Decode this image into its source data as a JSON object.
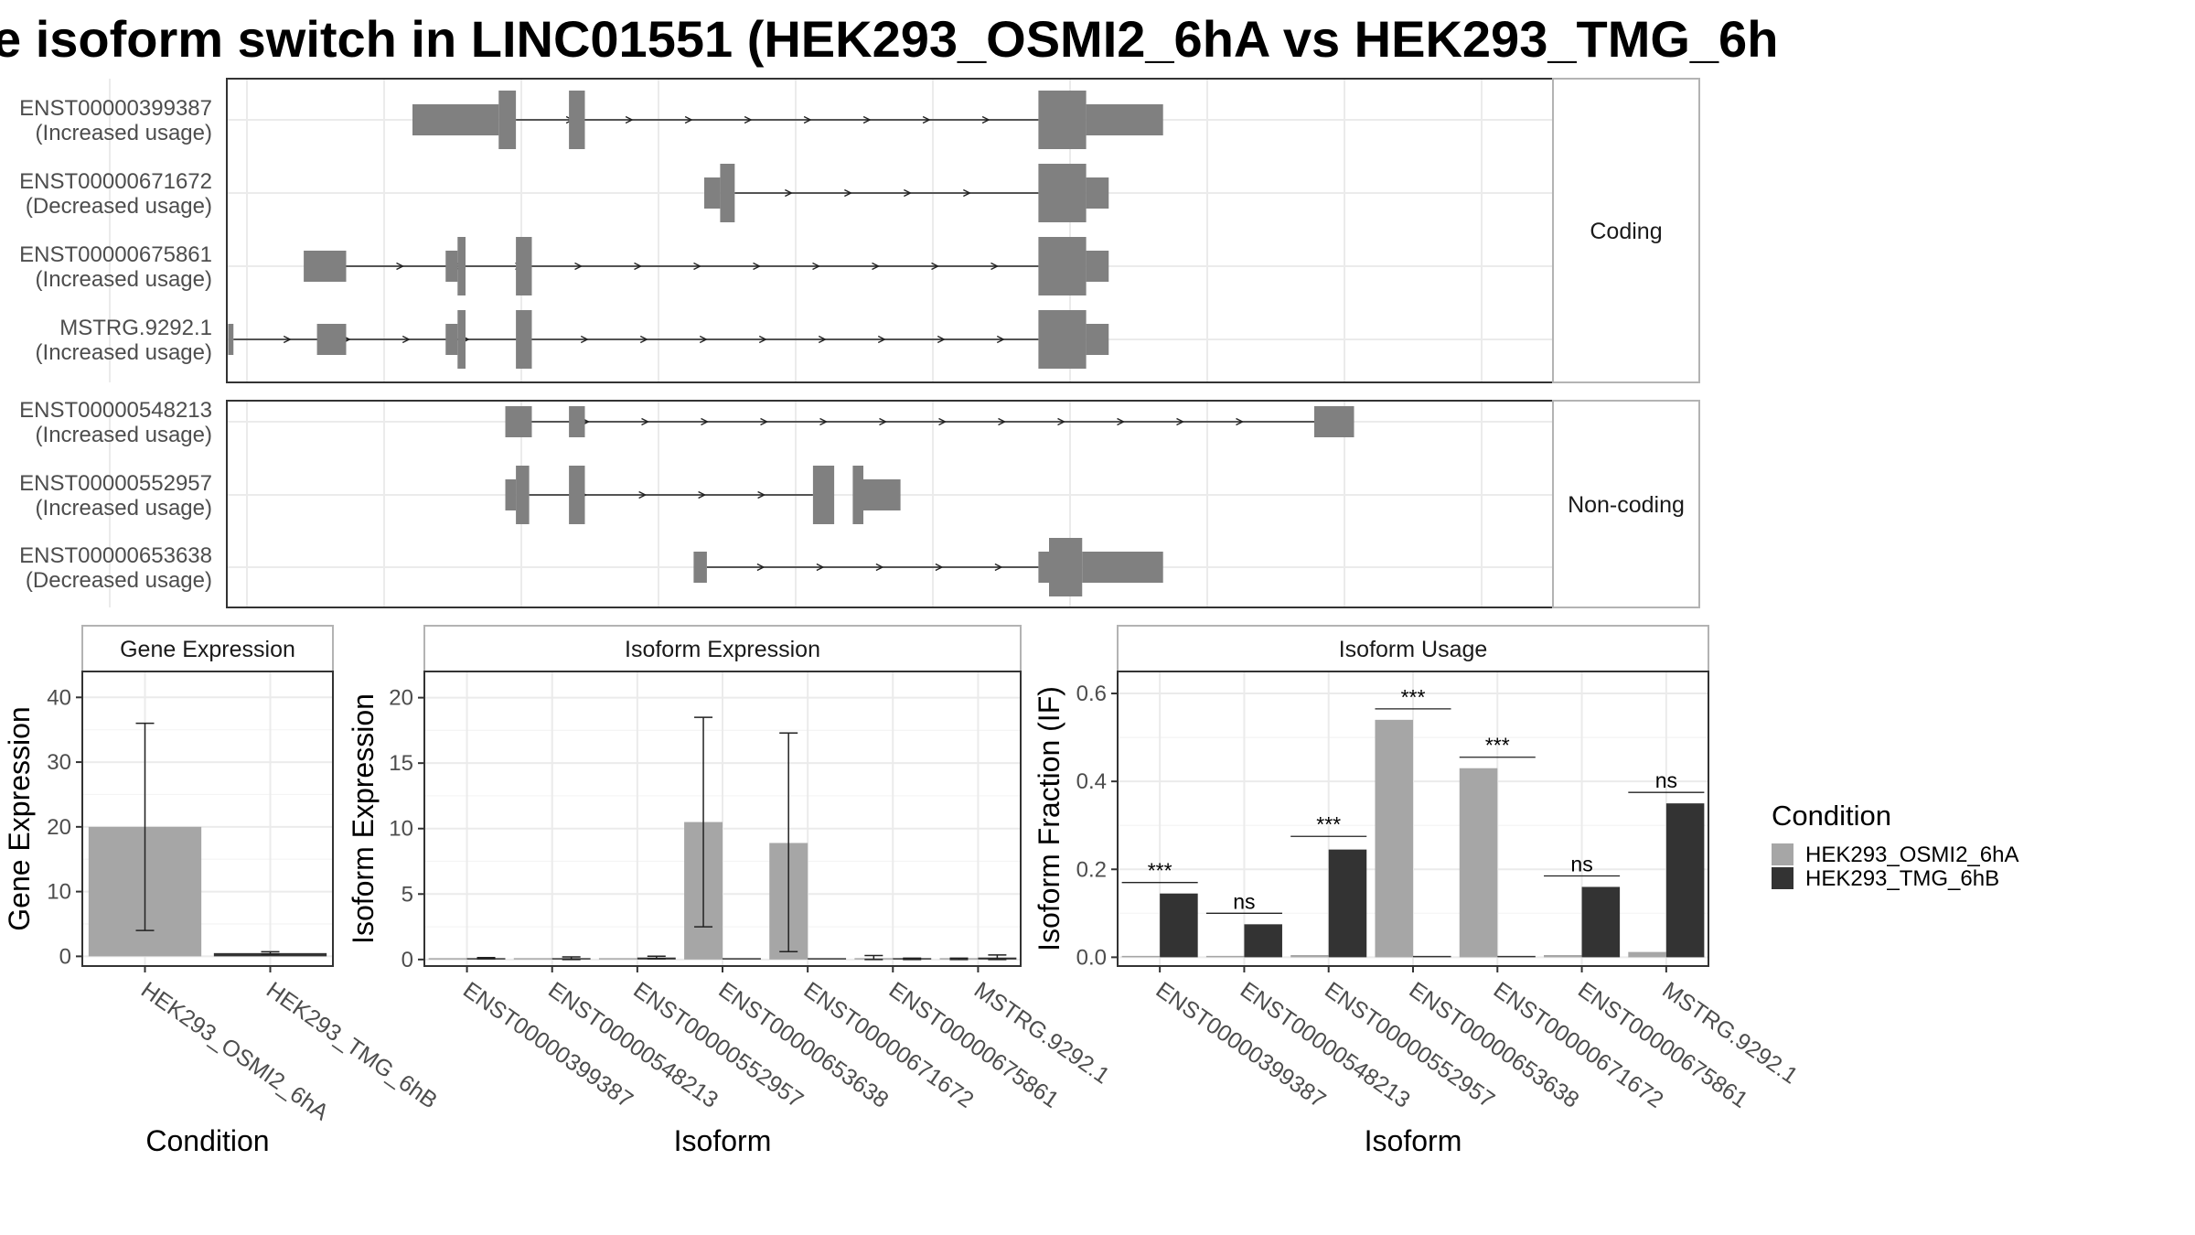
{
  "title": "e isoform switch in LINC01551 (HEK293_OSMI2_6hA vs HEK293_TMG_6h",
  "colors": {
    "condA": "#a6a6a6",
    "condB": "#333333",
    "exon": "#808080",
    "grid": "#ebebeb",
    "panel_border": "#333333",
    "strip_border": "#b3b3b3"
  },
  "structure_panels": [
    {
      "label": "Coding",
      "isoforms": [
        {
          "id": "ENST00000399387",
          "usage": "(Increased usage)"
        },
        {
          "id": "ENST00000671672",
          "usage": "(Decreased usage)"
        },
        {
          "id": "ENST00000675861",
          "usage": "(Increased usage)"
        },
        {
          "id": "MSTRG.9292.1",
          "usage": "(Increased usage)"
        }
      ]
    },
    {
      "label": "Non-coding",
      "isoforms": [
        {
          "id": "ENST00000548213",
          "usage": "(Increased usage)"
        },
        {
          "id": "ENST00000552957",
          "usage": "(Increased usage)"
        },
        {
          "id": "ENST00000653638",
          "usage": "(Decreased usage)"
        }
      ]
    }
  ],
  "legend": {
    "title": "Condition",
    "items": [
      {
        "label": "HEK293_OSMI2_6hA",
        "color": "#a6a6a6"
      },
      {
        "label": "HEK293_TMG_6hB",
        "color": "#333333"
      }
    ]
  },
  "chart_data": [
    {
      "type": "bar",
      "strip": "Gene Expression",
      "xlabel": "Condition",
      "ylabel": "Gene Expression",
      "ylim": [
        -1.5,
        44
      ],
      "yticks": [
        0,
        10,
        20,
        30,
        40
      ],
      "categories": [
        "HEK293_OSMI2_6hA",
        "HEK293_TMG_6hB"
      ],
      "values": [
        20.0,
        0.5
      ],
      "errors": [
        [
          4.0,
          36.0
        ],
        [
          0.3,
          0.7
        ]
      ]
    },
    {
      "type": "bar",
      "strip": "Isoform Expression",
      "xlabel": "Isoform",
      "ylabel": "Isoform Expression",
      "ylim": [
        -0.5,
        22
      ],
      "yticks": [
        0,
        5,
        10,
        15,
        20
      ],
      "categories": [
        "ENST00000399387",
        "ENST00000548213",
        "ENST00000552957",
        "ENST00000653638",
        "ENST00000671672",
        "ENST00000675861",
        "MSTRG.9292.1"
      ],
      "series": [
        {
          "name": "HEK293_OSMI2_6hA",
          "values": [
            0.0,
            0.0,
            0.0,
            10.5,
            8.9,
            0.1,
            0.05
          ],
          "errors": [
            [
              0,
              0
            ],
            [
              0,
              0
            ],
            [
              0,
              0
            ],
            [
              2.5,
              18.5
            ],
            [
              0.6,
              17.3
            ],
            [
              0.0,
              0.3
            ],
            [
              0.0,
              0.1
            ]
          ]
        },
        {
          "name": "HEK293_TMG_6hB",
          "values": [
            0.1,
            0.1,
            0.15,
            0.0,
            0.0,
            0.05,
            0.15
          ],
          "errors": [
            [
              0.05,
              0.15
            ],
            [
              0.0,
              0.2
            ],
            [
              0.05,
              0.25
            ],
            [
              0,
              0
            ],
            [
              0,
              0
            ],
            [
              0.0,
              0.1
            ],
            [
              0.0,
              0.35
            ]
          ]
        }
      ]
    },
    {
      "type": "bar",
      "strip": "Isoform Usage",
      "xlabel": "Isoform",
      "ylabel": "Isoform Fraction (IF)",
      "ylim": [
        -0.02,
        0.65
      ],
      "yticks": [
        "0.0",
        "0.2",
        "0.4",
        "0.6"
      ],
      "categories": [
        "ENST00000399387",
        "ENST00000548213",
        "ENST00000552957",
        "ENST00000653638",
        "ENST00000671672",
        "ENST00000675861",
        "MSTRG.9292.1"
      ],
      "series": [
        {
          "name": "HEK293_OSMI2_6hA",
          "values": [
            0.0,
            0.003,
            0.005,
            0.54,
            0.43,
            0.005,
            0.012
          ]
        },
        {
          "name": "HEK293_TMG_6hB",
          "values": [
            0.145,
            0.075,
            0.245,
            0.0,
            0.0,
            0.16,
            0.35
          ]
        }
      ],
      "significance": [
        "***",
        "ns",
        "***",
        "***",
        "***",
        "ns",
        "ns"
      ],
      "sig_line_y": [
        0.17,
        0.1,
        0.275,
        0.565,
        0.455,
        0.185,
        0.375
      ]
    }
  ]
}
